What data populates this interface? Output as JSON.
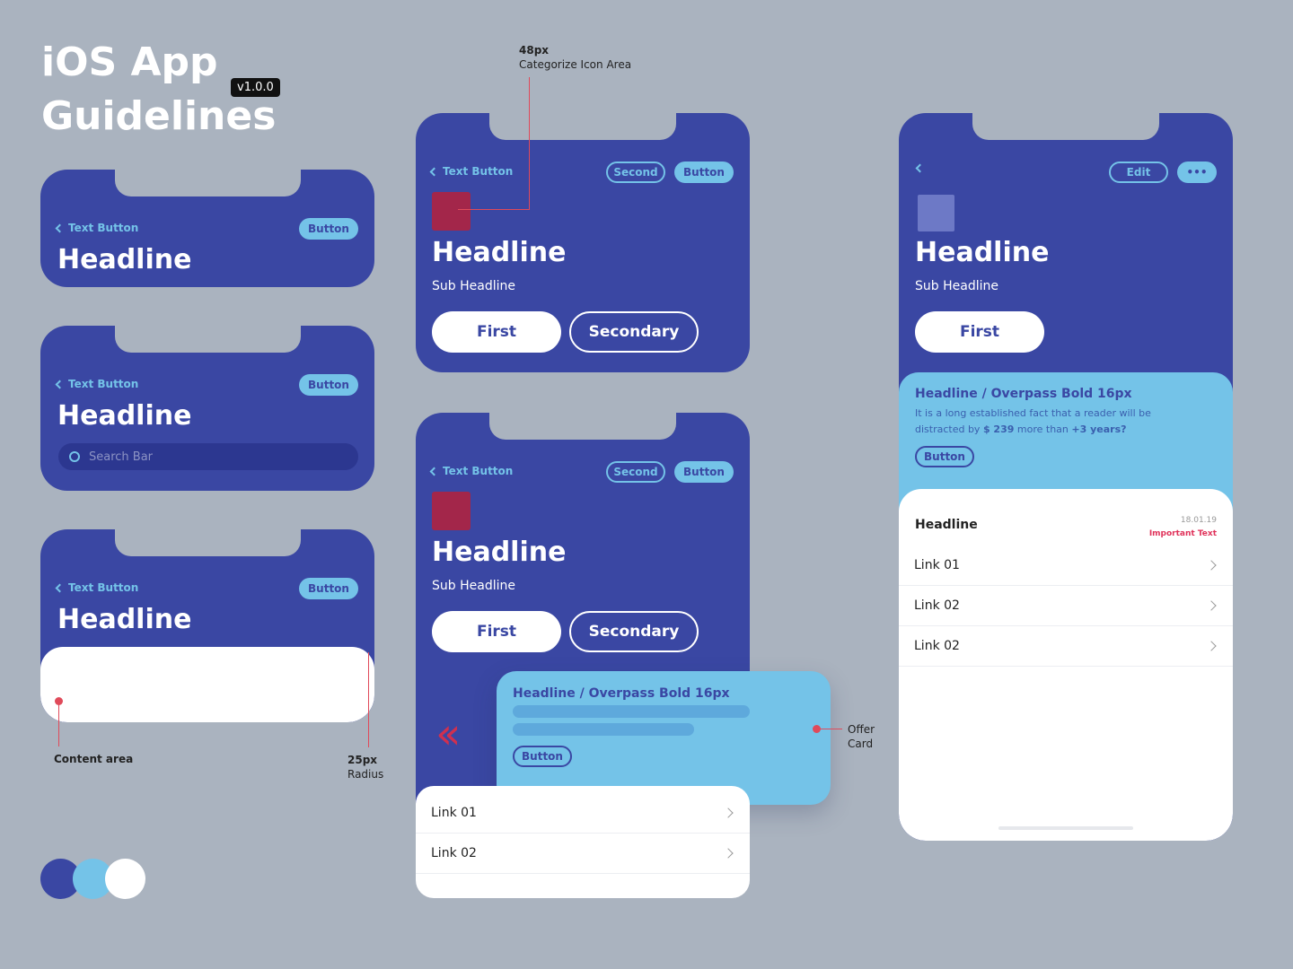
{
  "title": {
    "line1": "iOS App",
    "line2": "Guidelines",
    "version": "v1.0.0"
  },
  "colors": {
    "primary": "#3a47a3",
    "accent": "#74c3e8",
    "white": "#ffffff",
    "icon": "#a3264a",
    "important": "#e0325a"
  },
  "common": {
    "text_button": "Text Button",
    "button": "Button",
    "headline": "Headline",
    "sub_headline": "Sub Headline",
    "second": "Second",
    "first": "First",
    "secondary": "Secondary",
    "search_placeholder": "Search Bar",
    "edit": "Edit",
    "more": "•••"
  },
  "annotations": {
    "icon_size": "48px",
    "icon_area": "Categorize Icon Area",
    "content_area": "Content area",
    "radius_value": "25px",
    "radius_label": "Radius",
    "offer1": "Offer",
    "offer2": "Card"
  },
  "offer": {
    "headline": "Headline / Overpass Bold 16px",
    "body_pre": "It is a long established fact that a reader will be distracted by ",
    "price": "$ 239",
    "body_mid": " more than ",
    "years": "+3 years?",
    "button": "Button"
  },
  "list_mid": {
    "links": [
      "Link 01",
      "Link 02"
    ]
  },
  "list_right": {
    "headline": "Headline",
    "date": "18.01.19",
    "important": "Important Text",
    "links": [
      "Link 01",
      "Link 02",
      "Link 02"
    ]
  }
}
